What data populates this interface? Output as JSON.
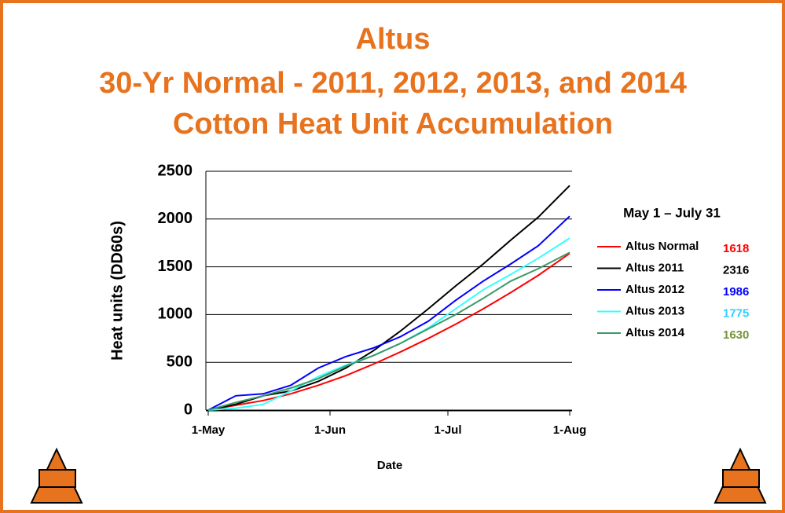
{
  "chart_data": {
    "type": "line",
    "title": [
      "Altus",
      "30-Yr Normal - 2011, 2012, 2013, and 2014",
      "Cotton Heat Unit Accumulation"
    ],
    "xlabel": "Date",
    "ylabel": "Heat units (DD60s)",
    "x": [
      0,
      7,
      14,
      21,
      28,
      35,
      42,
      49,
      56,
      63,
      70,
      77,
      84,
      92
    ],
    "xlim": [
      0,
      92
    ],
    "xticks": [
      {
        "value": 0,
        "label": "1-May"
      },
      {
        "value": 31,
        "label": "1-Jun"
      },
      {
        "value": 61,
        "label": "1-Jul"
      },
      {
        "value": 92,
        "label": "1-Aug"
      }
    ],
    "ylim": [
      0,
      2500
    ],
    "yticks": [
      0,
      500,
      1000,
      1500,
      2000,
      2500
    ],
    "grid": true,
    "legend_title": "May 1 – July 31",
    "series": [
      {
        "name": "Altus Normal",
        "color": "#ff0000",
        "total": 1618,
        "total_color": "#ff0000",
        "values": [
          0,
          50,
          100,
          170,
          260,
          360,
          480,
          610,
          750,
          900,
          1060,
          1230,
          1410,
          1640
        ]
      },
      {
        "name": "Altus 2011",
        "color": "#000000",
        "total": 2316,
        "total_color": "#000000",
        "values": [
          0,
          60,
          150,
          200,
          300,
          440,
          620,
          830,
          1060,
          1300,
          1530,
          1780,
          2020,
          2350
        ]
      },
      {
        "name": "Altus 2012",
        "color": "#0000ff",
        "total": 1986,
        "total_color": "#0000ff",
        "values": [
          0,
          150,
          170,
          260,
          440,
          560,
          650,
          770,
          930,
          1150,
          1350,
          1530,
          1720,
          2030
        ]
      },
      {
        "name": "Altus 2013",
        "color": "#33ffff",
        "total": 1775,
        "total_color": "#33ccff",
        "values": [
          0,
          20,
          60,
          200,
          350,
          470,
          570,
          700,
          860,
          1060,
          1260,
          1420,
          1590,
          1800
        ]
      },
      {
        "name": "Altus 2014",
        "color": "#3a9a6a",
        "total": 1630,
        "total_color": "#77933c",
        "values": [
          0,
          80,
          150,
          230,
          330,
          460,
          570,
          700,
          850,
          1000,
          1170,
          1350,
          1480,
          1650
        ]
      }
    ]
  }
}
